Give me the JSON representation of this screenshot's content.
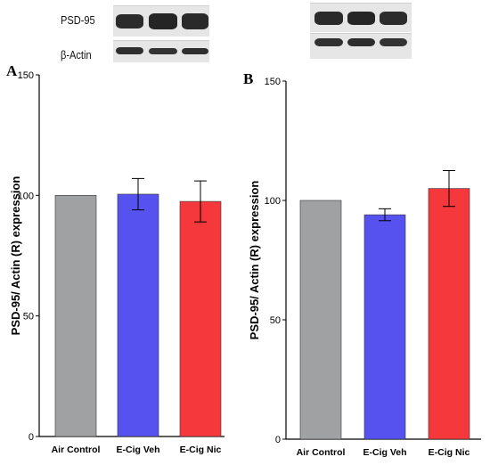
{
  "blot_labels": [
    "PSD-95",
    "β-Actin"
  ],
  "colors": {
    "air": "#a0a1a3",
    "veh": "#5552f0",
    "nic": "#f4383c"
  },
  "chart_data": [
    {
      "panel": "A",
      "type": "bar",
      "categories": [
        "Air Control",
        "E-Cig Veh",
        "E-Cig Nic"
      ],
      "values": [
        100,
        100.5,
        97.5
      ],
      "errors": [
        0,
        6.5,
        8.5
      ],
      "ylabel": "PSD-95/ Actin (R) expression",
      "ylim": [
        0,
        150
      ],
      "yticks": [
        0,
        50,
        100,
        150
      ]
    },
    {
      "panel": "B",
      "type": "bar",
      "categories": [
        "Air Control",
        "E-Cig Veh",
        "E-Cig Nic"
      ],
      "values": [
        100,
        94,
        105
      ],
      "errors": [
        0,
        2.5,
        7.5
      ],
      "ylabel": "PSD-95/ Actin (R) expression",
      "ylim": [
        0,
        150
      ],
      "yticks": [
        0,
        50,
        100,
        150
      ]
    }
  ]
}
